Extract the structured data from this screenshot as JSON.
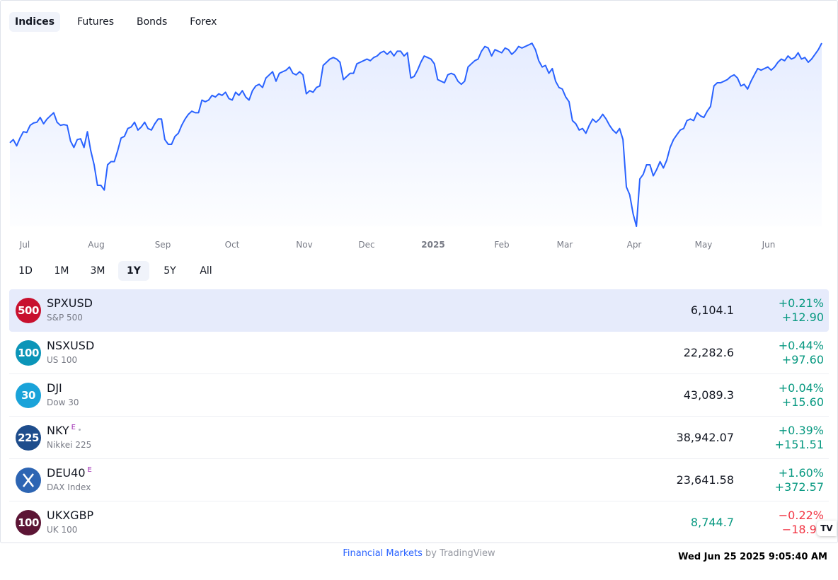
{
  "tabs": [
    "Indices",
    "Futures",
    "Bonds",
    "Forex"
  ],
  "active_tab": 0,
  "ranges": [
    "1D",
    "1M",
    "3M",
    "1Y",
    "5Y",
    "All"
  ],
  "active_range": 3,
  "chart_data": {
    "type": "area",
    "line_color": "#2962ff",
    "x_labels": [
      "Jul",
      "Aug",
      "Sep",
      "Oct",
      "Nov",
      "Dec",
      "2025",
      "Feb",
      "Mar",
      "Apr",
      "May",
      "Jun"
    ],
    "x_label_bold": "2025",
    "y_approx_range": [
      4980,
      6150
    ],
    "points": [
      5510,
      5530,
      5490,
      5540,
      5580,
      5575,
      5620,
      5635,
      5640,
      5670,
      5630,
      5660,
      5680,
      5700,
      5640,
      5620,
      5625,
      5620,
      5520,
      5480,
      5530,
      5535,
      5480,
      5580,
      5460,
      5370,
      5240,
      5240,
      5210,
      5370,
      5390,
      5390,
      5460,
      5540,
      5550,
      5600,
      5610,
      5640,
      5590,
      5610,
      5640,
      5600,
      5590,
      5630,
      5660,
      5660,
      5530,
      5500,
      5500,
      5550,
      5570,
      5620,
      5660,
      5690,
      5710,
      5700,
      5700,
      5780,
      5770,
      5780,
      5810,
      5800,
      5820,
      5810,
      5830,
      5790,
      5780,
      5830,
      5810,
      5840,
      5800,
      5780,
      5840,
      5870,
      5880,
      5860,
      5920,
      5940,
      5960,
      5900,
      5950,
      5960,
      5970,
      5990,
      5950,
      5940,
      5960,
      5940,
      5820,
      5840,
      5830,
      5860,
      5870,
      6000,
      6020,
      6040,
      6050,
      6040,
      6020,
      5910,
      5930,
      5950,
      5950,
      6010,
      6020,
      6030,
      6040,
      6030,
      6050,
      6060,
      6080,
      6090,
      6070,
      6090,
      6060,
      6090,
      6090,
      6060,
      6080,
      5920,
      5930,
      5970,
      6020,
      6060,
      6050,
      6040,
      6010,
      5910,
      5900,
      5890,
      5940,
      5950,
      5940,
      5900,
      5880,
      5900,
      5990,
      6010,
      6030,
      6040,
      6090,
      6120,
      6110,
      6060,
      6100,
      6090,
      6080,
      6110,
      6100,
      6070,
      6090,
      6120,
      6110,
      6120,
      6130,
      6140,
      6100,
      6030,
      5990,
      6000,
      5950,
      5980,
      5900,
      5860,
      5850,
      5800,
      5770,
      5650,
      5630,
      5590,
      5600,
      5570,
      5620,
      5660,
      5640,
      5660,
      5690,
      5660,
      5620,
      5590,
      5570,
      5600,
      5530,
      5230,
      5180,
      5060,
      4980,
      5280,
      5310,
      5370,
      5370,
      5300,
      5340,
      5390,
      5350,
      5400,
      5480,
      5530,
      5560,
      5590,
      5600,
      5650,
      5660,
      5650,
      5700,
      5680,
      5670,
      5710,
      5740,
      5870,
      5890,
      5890,
      5900,
      5910,
      5930,
      5940,
      5920,
      5870,
      5880,
      5850,
      5900,
      5940,
      5980,
      5970,
      5980,
      5990,
      5970,
      5990,
      6020,
      6040,
      6030,
      6060,
      6040,
      6050,
      6080,
      6040,
      6050,
      6020,
      6040,
      6070,
      6100,
      6141
    ]
  },
  "rows": [
    {
      "symbol": "SPXUSD",
      "desc": "S&P 500",
      "logo_text": "500",
      "logo_color": "#c8102e",
      "price": "6,104.1",
      "pct": "+0.21%",
      "abs": "+12.90",
      "dir": "up",
      "selected": true,
      "sup": "",
      "dot": false
    },
    {
      "symbol": "NSXUSD",
      "desc": "US 100",
      "logo_text": "100",
      "logo_color": "#0b95b8",
      "price": "22,282.6",
      "pct": "+0.44%",
      "abs": "+97.60",
      "dir": "up",
      "selected": false,
      "sup": "",
      "dot": false
    },
    {
      "symbol": "DJI",
      "desc": "Dow 30",
      "logo_text": "30",
      "logo_color": "#1aa3d9",
      "price": "43,089.3",
      "pct": "+0.04%",
      "abs": "+15.60",
      "dir": "up",
      "selected": false,
      "sup": "",
      "dot": false
    },
    {
      "symbol": "NKY",
      "desc": "Nikkei 225",
      "logo_text": "225",
      "logo_color": "#1e4d8c",
      "price": "38,942.07",
      "pct": "+0.39%",
      "abs": "+151.51",
      "dir": "up",
      "selected": false,
      "sup": "E",
      "dot": true
    },
    {
      "symbol": "DEU40",
      "desc": "DAX Index",
      "logo_text": "X",
      "logo_color": "#2d65b3",
      "price": "23,641.58",
      "pct": "+1.60%",
      "abs": "+372.57",
      "dir": "up",
      "selected": false,
      "sup": "E",
      "dot": false
    },
    {
      "symbol": "UKXGBP",
      "desc": "UK 100",
      "logo_text": "100",
      "logo_color": "#5c1535",
      "price": "8,744.7",
      "pct": "−0.22%",
      "abs": "−18.90",
      "dir": "down",
      "selected": false,
      "sup": "",
      "dot": false,
      "price_green": true
    }
  ],
  "tv_badge": "TV",
  "footer": {
    "link": "Financial Markets",
    "by": "by TradingView"
  },
  "clock": "Wed Jun 25 2025 9:05:40 AM"
}
